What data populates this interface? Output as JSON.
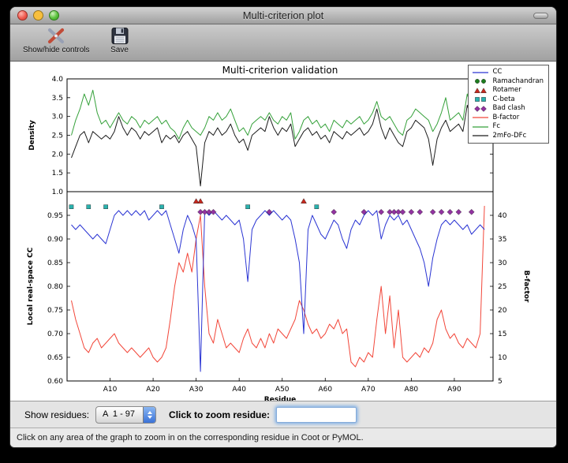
{
  "window": {
    "title": "Multi-criterion plot"
  },
  "toolbar": {
    "items": [
      {
        "label": "Show/hide controls"
      },
      {
        "label": "Save"
      }
    ]
  },
  "controls": {
    "show_residues_label": "Show residues:",
    "residue_range_value": "A  1 - 97",
    "zoom_residue_label": "Click to zoom residue:",
    "zoom_residue_value": ""
  },
  "status_bar": {
    "text": "Click on any area of the graph to zoom in on the corresponding residue in Coot or PyMOL."
  },
  "chart_data": {
    "type": "line",
    "title": "Multi-criterion validation",
    "x_label": "Residue",
    "xlim": [
      0,
      99
    ],
    "x_tick_values": [
      10,
      20,
      30,
      40,
      50,
      60,
      70,
      80,
      90
    ],
    "x_tick_labels": [
      "A10",
      "A20",
      "A30",
      "A40",
      "A50",
      "A60",
      "A70",
      "A80",
      "A90"
    ],
    "x_description": "Chain A residues 1-97; series values are indexed from residue 1",
    "top": {
      "ylabel": "Density",
      "ylim": [
        1.0,
        4.0
      ],
      "yticks": [
        1.0,
        1.5,
        2.0,
        2.5,
        3.0,
        3.5,
        4.0
      ],
      "series": [
        {
          "name": "Fc",
          "color": "#35a13a",
          "values": [
            2.5,
            2.9,
            3.2,
            3.6,
            3.3,
            3.7,
            3.1,
            2.8,
            2.9,
            2.7,
            2.9,
            3.1,
            2.9,
            2.8,
            3.0,
            2.9,
            2.7,
            2.9,
            2.8,
            2.9,
            3.0,
            2.8,
            2.9,
            2.7,
            2.6,
            2.4,
            2.7,
            2.9,
            2.7,
            2.6,
            2.5,
            2.7,
            3.0,
            2.9,
            3.1,
            2.9,
            3.0,
            3.2,
            2.9,
            2.6,
            2.7,
            2.5,
            2.8,
            2.9,
            3.0,
            2.9,
            3.1,
            2.9,
            2.8,
            3.0,
            2.9,
            3.1,
            2.4,
            2.6,
            2.9,
            3.0,
            2.8,
            2.9,
            2.7,
            2.8,
            2.6,
            2.9,
            2.8,
            2.7,
            2.9,
            2.8,
            2.9,
            3.0,
            2.8,
            2.9,
            3.1,
            3.4,
            3.0,
            2.9,
            3.0,
            2.8,
            2.6,
            2.5,
            2.9,
            3.0,
            3.2,
            3.1,
            3.0,
            2.9,
            2.6,
            2.8,
            3.1,
            3.5,
            2.9,
            3.0,
            3.1,
            2.9,
            3.6,
            3.2,
            3.0,
            3.5,
            2.9
          ]
        },
        {
          "name": "2mFo-DFc",
          "color": "#1c1c1c",
          "values": [
            1.9,
            2.2,
            2.5,
            2.6,
            2.3,
            2.6,
            2.5,
            2.4,
            2.5,
            2.4,
            2.6,
            3.0,
            2.7,
            2.5,
            2.7,
            2.6,
            2.4,
            2.6,
            2.5,
            2.6,
            2.7,
            2.3,
            2.5,
            2.4,
            2.5,
            2.3,
            2.5,
            2.6,
            2.4,
            2.2,
            1.15,
            2.3,
            2.6,
            2.5,
            2.7,
            2.5,
            2.6,
            2.8,
            2.5,
            2.3,
            2.4,
            2.1,
            2.5,
            2.6,
            2.7,
            2.6,
            3.0,
            2.7,
            2.5,
            2.7,
            2.6,
            2.8,
            2.2,
            2.4,
            2.6,
            2.7,
            2.5,
            2.6,
            2.4,
            2.5,
            2.3,
            2.6,
            2.5,
            2.4,
            2.6,
            2.5,
            2.6,
            2.7,
            2.5,
            2.6,
            2.8,
            3.2,
            2.7,
            2.4,
            2.7,
            2.5,
            2.3,
            2.2,
            2.6,
            2.7,
            2.9,
            2.8,
            2.7,
            2.4,
            1.7,
            2.4,
            2.7,
            2.9,
            2.6,
            2.7,
            2.8,
            2.6,
            3.3,
            2.9,
            2.7,
            2.9,
            2.5
          ]
        }
      ]
    },
    "bottom": {
      "ylabel_left": "Local real-space CC",
      "ylim_left": [
        0.6,
        1.0
      ],
      "yticks_left": [
        0.6,
        0.65,
        0.7,
        0.75,
        0.8,
        0.85,
        0.9,
        0.95
      ],
      "ylabel_right": "B-factor",
      "ylim_right": [
        5,
        45
      ],
      "yticks_right": [
        5,
        10,
        15,
        20,
        25,
        30,
        35,
        40
      ],
      "series_left": [
        {
          "name": "CC",
          "color": "#2b35d3",
          "values": [
            0.93,
            0.92,
            0.93,
            0.92,
            0.91,
            0.9,
            0.91,
            0.9,
            0.89,
            0.92,
            0.95,
            0.96,
            0.95,
            0.96,
            0.95,
            0.96,
            0.95,
            0.96,
            0.94,
            0.95,
            0.96,
            0.95,
            0.96,
            0.93,
            0.9,
            0.87,
            0.92,
            0.95,
            0.93,
            0.9,
            0.62,
            0.96,
            0.95,
            0.96,
            0.95,
            0.94,
            0.95,
            0.94,
            0.93,
            0.94,
            0.9,
            0.81,
            0.92,
            0.94,
            0.95,
            0.96,
            0.95,
            0.96,
            0.95,
            0.94,
            0.95,
            0.94,
            0.9,
            0.85,
            0.7,
            0.92,
            0.95,
            0.93,
            0.91,
            0.9,
            0.92,
            0.94,
            0.93,
            0.9,
            0.88,
            0.92,
            0.94,
            0.93,
            0.95,
            0.96,
            0.95,
            0.96,
            0.9,
            0.93,
            0.95,
            0.94,
            0.95,
            0.93,
            0.94,
            0.92,
            0.9,
            0.88,
            0.85,
            0.8,
            0.86,
            0.9,
            0.93,
            0.94,
            0.93,
            0.94,
            0.93,
            0.92,
            0.93,
            0.91,
            0.92,
            0.93,
            0.92
          ]
        }
      ],
      "series_right": [
        {
          "name": "B-factor",
          "color": "#f2473a",
          "values": [
            22,
            18,
            15,
            12,
            11,
            13,
            14,
            12,
            13,
            14,
            15,
            13,
            12,
            11,
            12,
            11,
            10,
            11,
            12,
            10,
            9,
            10,
            12,
            18,
            25,
            30,
            28,
            32,
            28,
            35,
            40,
            25,
            15,
            13,
            18,
            15,
            12,
            13,
            12,
            11,
            14,
            16,
            13,
            12,
            14,
            12,
            15,
            13,
            16,
            15,
            14,
            16,
            18,
            22,
            20,
            17,
            15,
            16,
            14,
            15,
            17,
            16,
            18,
            15,
            16,
            9,
            8,
            10,
            9,
            11,
            10,
            18,
            25,
            15,
            23,
            12,
            20,
            10,
            9,
            10,
            11,
            10,
            12,
            11,
            13,
            18,
            20,
            16,
            14,
            15,
            13,
            12,
            14,
            13,
            12,
            15,
            42
          ]
        }
      ],
      "markers": [
        {
          "name": "Ramachandran",
          "shape": "circle",
          "color": "#1e7d1e",
          "y": 0.99,
          "residues": []
        },
        {
          "name": "Rotamer",
          "shape": "triangle",
          "color": "#c8281e",
          "y": 0.98,
          "residues": [
            30,
            31,
            55
          ]
        },
        {
          "name": "C-beta",
          "shape": "square",
          "color": "#2ab2ae",
          "y": 0.968,
          "residues": [
            1,
            5,
            9,
            22,
            42,
            58
          ]
        },
        {
          "name": "Bad clash",
          "shape": "diamond",
          "color": "#9233a0",
          "y": 0.957,
          "residues": [
            31,
            32,
            33,
            34,
            47,
            62,
            69,
            73,
            75,
            76,
            77,
            78,
            80,
            82,
            85,
            87,
            89,
            91,
            94
          ]
        }
      ]
    },
    "legend": {
      "position": "upper right",
      "entries": [
        {
          "label": "CC",
          "type": "line",
          "color": "#2b35d3"
        },
        {
          "label": "Ramachandran",
          "type": "circle",
          "color": "#1e7d1e"
        },
        {
          "label": "Rotamer",
          "type": "triangle",
          "color": "#c8281e"
        },
        {
          "label": "C-beta",
          "type": "square",
          "color": "#2ab2ae"
        },
        {
          "label": "Bad clash",
          "type": "diamond",
          "color": "#9233a0"
        },
        {
          "label": "B-factor",
          "type": "line",
          "color": "#f2473a"
        },
        {
          "label": "Fc",
          "type": "line",
          "color": "#35a13a"
        },
        {
          "label": "2mFo-DFc",
          "type": "line",
          "color": "#1c1c1c"
        }
      ]
    }
  }
}
